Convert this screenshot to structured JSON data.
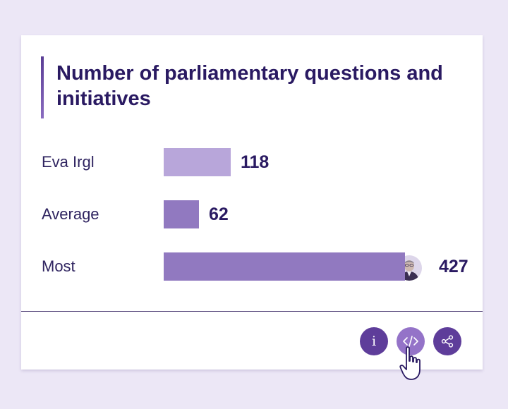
{
  "card": {
    "title": "Number of parliamentary questions and initiatives"
  },
  "chart_data": {
    "type": "bar",
    "orientation": "horizontal",
    "title": "Number of parliamentary questions and initiatives",
    "categories": [
      "Eva Irgl",
      "Average",
      "Most"
    ],
    "values": [
      118,
      62,
      427
    ],
    "value_labels": [
      "118",
      "62",
      "427"
    ],
    "xlim": [
      0,
      427
    ],
    "colors": [
      "#b8a6da",
      "#9179c0",
      "#9179c0"
    ],
    "annotations": [
      "Most: portrait avatar of the top member at bar end"
    ]
  },
  "actions": {
    "info_glyph": "i",
    "embed_icon": "code-icon",
    "share_icon": "share-icon"
  },
  "colors": {
    "background": "#ece7f6",
    "title": "#2a1a62",
    "accent": "#5e3d9a",
    "accent_light": "#9473c8"
  }
}
